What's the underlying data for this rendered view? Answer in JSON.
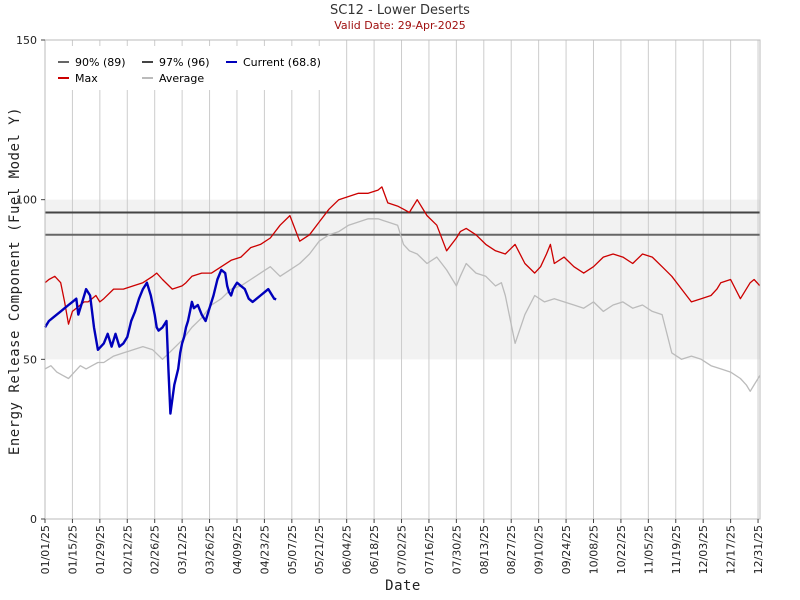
{
  "chart_data": {
    "type": "line",
    "title": "SC12 - Lower Deserts",
    "subtitle": "Valid Date: 29-Apr-2025",
    "xlabel": "Date",
    "ylabel": "Energy Release Component (Fuel Model Y)",
    "ylim": [
      0,
      150
    ],
    "yticks": [
      0,
      50,
      100,
      150
    ],
    "x_range_days": [
      0,
      365
    ],
    "x_ticks": [
      "01/01/25",
      "01/15/25",
      "01/29/25",
      "02/12/25",
      "02/26/25",
      "03/12/25",
      "03/26/25",
      "04/09/25",
      "04/23/25",
      "05/07/25",
      "05/21/25",
      "06/04/25",
      "06/18/25",
      "07/02/25",
      "07/16/25",
      "07/30/25",
      "08/13/25",
      "08/27/25",
      "09/10/25",
      "09/24/25",
      "10/08/25",
      "10/22/25",
      "11/05/25",
      "11/19/25",
      "12/03/25",
      "12/17/25",
      "12/31/25"
    ],
    "shaded_band": [
      50,
      100
    ],
    "grid": "vertical",
    "legend_position": "top-left",
    "reference_lines": [
      {
        "name": "90% (89)",
        "value": 89,
        "color": "#666666"
      },
      {
        "name": "97% (96)",
        "value": 96,
        "color": "#444444"
      }
    ],
    "series": [
      {
        "name": "Max",
        "color": "#cc0000",
        "x": [
          0,
          2,
          5,
          8,
          10,
          12,
          14,
          16,
          18,
          20,
          22,
          24,
          26,
          28,
          30,
          35,
          40,
          45,
          50,
          55,
          57,
          60,
          65,
          70,
          72,
          75,
          80,
          85,
          90,
          95,
          100,
          105,
          110,
          115,
          120,
          125,
          130,
          135,
          140,
          145,
          150,
          155,
          160,
          165,
          170,
          172,
          175,
          180,
          183,
          186,
          190,
          195,
          200,
          205,
          210,
          212,
          215,
          220,
          225,
          230,
          235,
          240,
          245,
          250,
          253,
          256,
          258,
          260,
          265,
          270,
          275,
          280,
          285,
          290,
          295,
          300,
          305,
          310,
          315,
          320,
          325,
          330,
          335,
          340,
          343,
          345,
          350,
          355,
          360,
          362,
          365
        ],
        "y": [
          74,
          75,
          76,
          74,
          68,
          61,
          65,
          66,
          67,
          68,
          68,
          69,
          70,
          68,
          69,
          72,
          72,
          73,
          74,
          76,
          77,
          75,
          72,
          73,
          74,
          76,
          77,
          77,
          79,
          81,
          82,
          85,
          86,
          88,
          92,
          95,
          87,
          89,
          93,
          97,
          100,
          101,
          102,
          102,
          103,
          104,
          99,
          98,
          97,
          96,
          100,
          95,
          92,
          84,
          88,
          90,
          91,
          89,
          86,
          84,
          83,
          86,
          80,
          77,
          79,
          83,
          86,
          80,
          82,
          79,
          77,
          79,
          82,
          83,
          82,
          80,
          83,
          82,
          79,
          76,
          72,
          68,
          69,
          70,
          72,
          74,
          75,
          69,
          74,
          75,
          73
        ]
      },
      {
        "name": "Average",
        "color": "#bbbbbb",
        "x": [
          0,
          3,
          6,
          9,
          12,
          15,
          18,
          21,
          24,
          27,
          30,
          35,
          40,
          45,
          50,
          55,
          60,
          65,
          70,
          75,
          80,
          85,
          90,
          95,
          100,
          105,
          110,
          115,
          120,
          125,
          130,
          135,
          140,
          145,
          150,
          155,
          160,
          165,
          170,
          175,
          180,
          183,
          186,
          190,
          195,
          200,
          205,
          210,
          212,
          215,
          220,
          225,
          230,
          233,
          235,
          240,
          245,
          250,
          255,
          260,
          265,
          270,
          275,
          280,
          285,
          290,
          295,
          300,
          305,
          310,
          315,
          320,
          325,
          330,
          335,
          340,
          345,
          350,
          355,
          358,
          360,
          362,
          365
        ],
        "y": [
          47,
          48,
          46,
          45,
          44,
          46,
          48,
          47,
          48,
          49,
          49,
          51,
          52,
          53,
          54,
          53,
          50,
          53,
          56,
          60,
          63,
          67,
          69,
          72,
          73,
          75,
          77,
          79,
          76,
          78,
          80,
          83,
          87,
          89,
          90,
          92,
          93,
          94,
          94,
          93,
          92,
          86,
          84,
          83,
          80,
          82,
          78,
          73,
          76,
          80,
          77,
          76,
          73,
          74,
          70,
          55,
          64,
          70,
          68,
          69,
          68,
          67,
          66,
          68,
          65,
          67,
          68,
          66,
          67,
          65,
          64,
          52,
          50,
          51,
          50,
          48,
          47,
          46,
          44,
          42,
          40,
          42,
          45
        ]
      },
      {
        "name": "Current (68.8)",
        "color": "#0000bb",
        "x": [
          0,
          2,
          4,
          6,
          8,
          10,
          12,
          14,
          16,
          17,
          18,
          20,
          21,
          23,
          25,
          27,
          30,
          32,
          34,
          36,
          38,
          40,
          42,
          44,
          46,
          48,
          50,
          52,
          54,
          56,
          57,
          58,
          60,
          62,
          63,
          64,
          66,
          68,
          69,
          70,
          71,
          72,
          73,
          74,
          75,
          76,
          78,
          80,
          82,
          84,
          85,
          86,
          88,
          90,
          92,
          93,
          94,
          95,
          96,
          97,
          98,
          100,
          102,
          104,
          106,
          108,
          110,
          112,
          114,
          116,
          117,
          118
        ],
        "y": [
          60,
          62,
          63,
          64,
          65,
          66,
          67,
          68,
          69,
          64,
          66,
          70,
          72,
          70,
          60,
          53,
          55,
          58,
          54,
          58,
          54,
          55,
          57,
          62,
          65,
          69,
          72,
          74,
          70,
          64,
          60,
          59,
          60,
          62,
          47,
          33,
          42,
          47,
          52,
          55,
          57,
          60,
          62,
          65,
          68,
          66,
          67,
          64,
          62,
          66,
          68,
          70,
          75,
          78,
          77,
          73,
          71,
          70,
          72,
          73,
          74,
          73,
          72,
          69,
          68,
          69,
          70,
          71,
          72,
          70,
          69,
          68.8
        ]
      }
    ]
  }
}
